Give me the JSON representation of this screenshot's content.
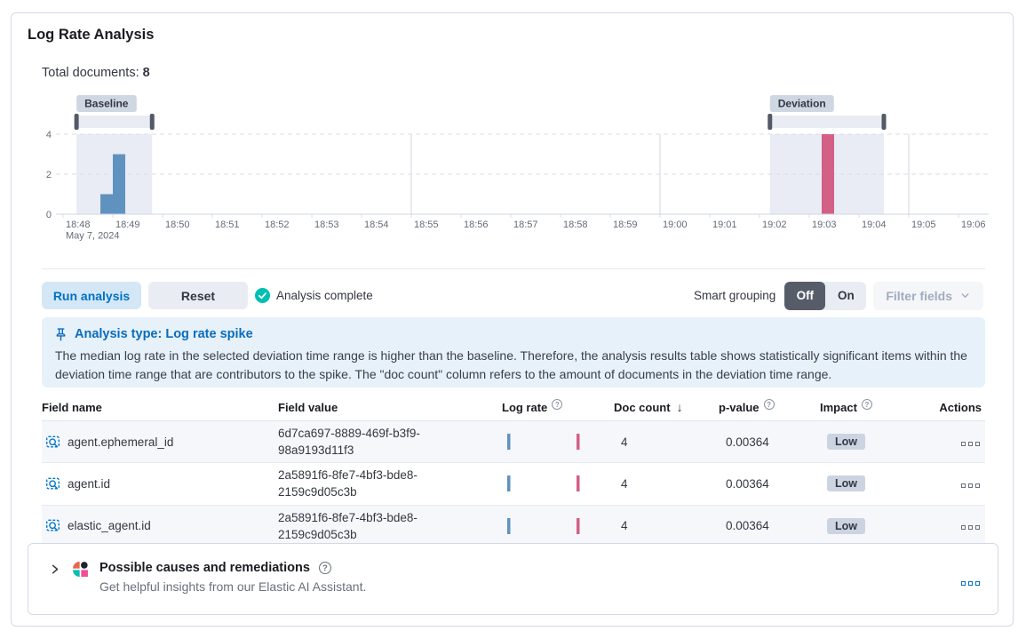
{
  "panel_title": "Log Rate Analysis",
  "total_documents": {
    "label": "Total documents:",
    "value": "8"
  },
  "chart_data": {
    "type": "bar",
    "title": "Document count histogram with baseline and deviation brushes",
    "x_ticks": [
      "18:48",
      "18:49",
      "18:50",
      "18:51",
      "18:52",
      "18:53",
      "18:54",
      "18:55",
      "18:56",
      "18:57",
      "18:58",
      "18:59",
      "19:00",
      "19:01",
      "19:02",
      "19:03",
      "19:04",
      "19:05",
      "19:06"
    ],
    "x_date_label": "May 7, 2024",
    "y_ticks": [
      0,
      2,
      4
    ],
    "ylim": [
      0,
      4
    ],
    "grid_vertical_ticks": [
      "18:55",
      "19:00",
      "19:05"
    ],
    "baseline": {
      "label": "Baseline",
      "start_min": 0.27,
      "end_min": 1.79
    },
    "deviation": {
      "label": "Deviation",
      "start_min": 14.21,
      "end_min": 16.5
    },
    "bars": [
      {
        "time": "18:48:45",
        "offset_min": 0.75,
        "width_min": 0.25,
        "value": 1,
        "series": "baseline"
      },
      {
        "time": "18:49:00",
        "offset_min": 1.0,
        "width_min": 0.25,
        "value": 3,
        "series": "baseline"
      },
      {
        "time": "19:03:15",
        "offset_min": 15.25,
        "width_min": 0.25,
        "value": 4,
        "series": "deviation"
      }
    ],
    "colors": {
      "baseline_bar": "#6092c0",
      "deviation_bar": "#d36086",
      "brush_region": "#e9ecf4",
      "track": "#e9edf3",
      "handle": "#535966",
      "grid": "#d7dce6",
      "axis_line": "#cfd6e0",
      "axis_text": "#646b79",
      "badge_bg": "#cfd7e3",
      "badge_text": "#343741"
    }
  },
  "controls": {
    "run_button": "Run analysis",
    "reset_button": "Reset",
    "status": "Analysis complete",
    "smart_grouping_label": "Smart grouping",
    "toggle_off": "Off",
    "toggle_on": "On",
    "filter_fields": "Filter fields"
  },
  "banner": {
    "title": "Analysis type: Log rate spike",
    "body": "The median log rate in the selected deviation time range is higher than the baseline. Therefore, the analysis results table shows statistically significant items within the deviation time range that are contributors to the spike. The \"doc count\" column refers to the amount of documents in the deviation time range."
  },
  "table": {
    "columns": [
      {
        "label": "Field name"
      },
      {
        "label": "Field value"
      },
      {
        "label": "Log rate"
      },
      {
        "label": "Doc count"
      },
      {
        "label": "p-value"
      },
      {
        "label": "Impact"
      },
      {
        "label": "Actions"
      }
    ],
    "rows": [
      {
        "field_name": "agent.ephemeral_id",
        "field_value": "6d7ca697-8889-469f-b3f9-98a9193d11f3",
        "doc_count": "4",
        "p_value": "0.00364",
        "impact": "Low"
      },
      {
        "field_name": "agent.id",
        "field_value": "2a5891f6-8fe7-4bf3-bde8-2159c9d05c3b",
        "doc_count": "4",
        "p_value": "0.00364",
        "impact": "Low"
      },
      {
        "field_name": "elastic_agent.id",
        "field_value": "2a5891f6-8fe7-4bf3-bde8-2159c9d05c3b",
        "doc_count": "4",
        "p_value": "0.00364",
        "impact": "Low"
      }
    ]
  },
  "footer_panel": {
    "title": "Possible causes and remediations",
    "subtitle": "Get helpful insights from our Elastic AI Assistant."
  }
}
